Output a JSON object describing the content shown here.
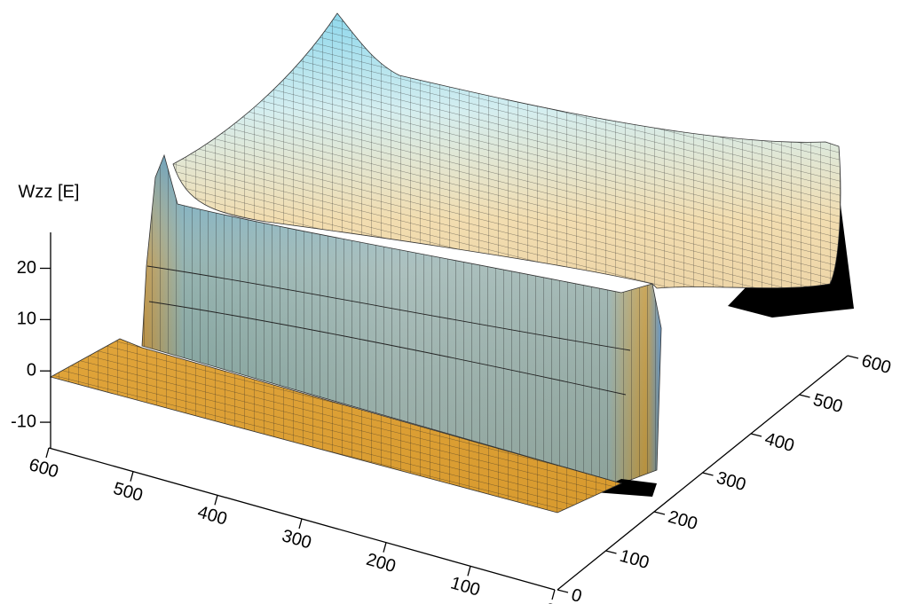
{
  "chart_data": {
    "type": "surface",
    "zlabel": "Wzz [E]",
    "zlim": [
      -15,
      27
    ],
    "zticks": [
      -10,
      0,
      10,
      20
    ],
    "xlim": [
      0,
      600
    ],
    "xticks": [
      0,
      100,
      200,
      300,
      400,
      500,
      600
    ],
    "ylim": [
      0,
      600
    ],
    "yticks": [
      0,
      100,
      200,
      300,
      400,
      500,
      600
    ]
  }
}
